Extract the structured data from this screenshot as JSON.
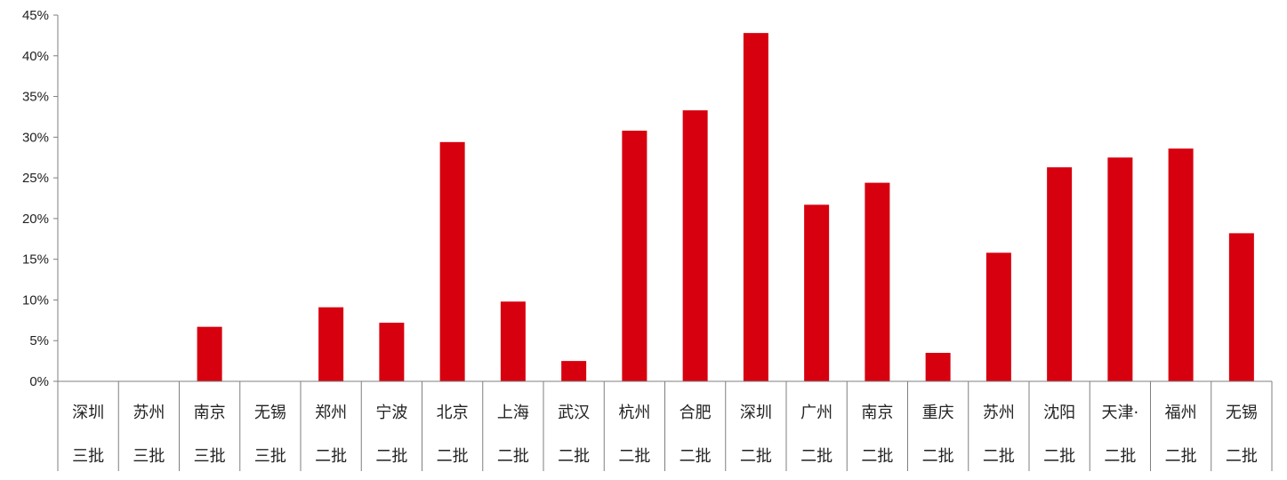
{
  "chart_data": {
    "type": "bar",
    "categories": [
      [
        "深圳",
        "三批"
      ],
      [
        "苏州",
        "三批"
      ],
      [
        "南京",
        "三批"
      ],
      [
        "无锡",
        "三批"
      ],
      [
        "郑州",
        "二批"
      ],
      [
        "宁波",
        "二批"
      ],
      [
        "北京",
        "二批"
      ],
      [
        "上海",
        "二批"
      ],
      [
        "武汉",
        "二批"
      ],
      [
        "杭州",
        "二批"
      ],
      [
        "合肥",
        "二批"
      ],
      [
        "深圳",
        "二批"
      ],
      [
        "广州",
        "二批"
      ],
      [
        "南京",
        "二批"
      ],
      [
        "重庆",
        "二批"
      ],
      [
        "苏州",
        "二批"
      ],
      [
        "沈阳",
        "二批"
      ],
      [
        "天津·",
        "二批"
      ],
      [
        "福州",
        "二批"
      ],
      [
        "无锡",
        "二批"
      ]
    ],
    "values": [
      0,
      0,
      6.7,
      0,
      9.1,
      7.2,
      29.4,
      9.8,
      2.5,
      30.8,
      33.3,
      42.8,
      21.7,
      24.4,
      3.5,
      15.8,
      26.3,
      27.5,
      28.6,
      18.2
    ],
    "ylim": [
      0,
      45
    ],
    "yticks": [
      "0%",
      "5%",
      "10%",
      "15%",
      "20%",
      "25%",
      "30%",
      "35%",
      "40%",
      "45%"
    ],
    "grid": false,
    "bar_color": "#d7000f",
    "title": "",
    "xlabel": "",
    "ylabel": ""
  }
}
